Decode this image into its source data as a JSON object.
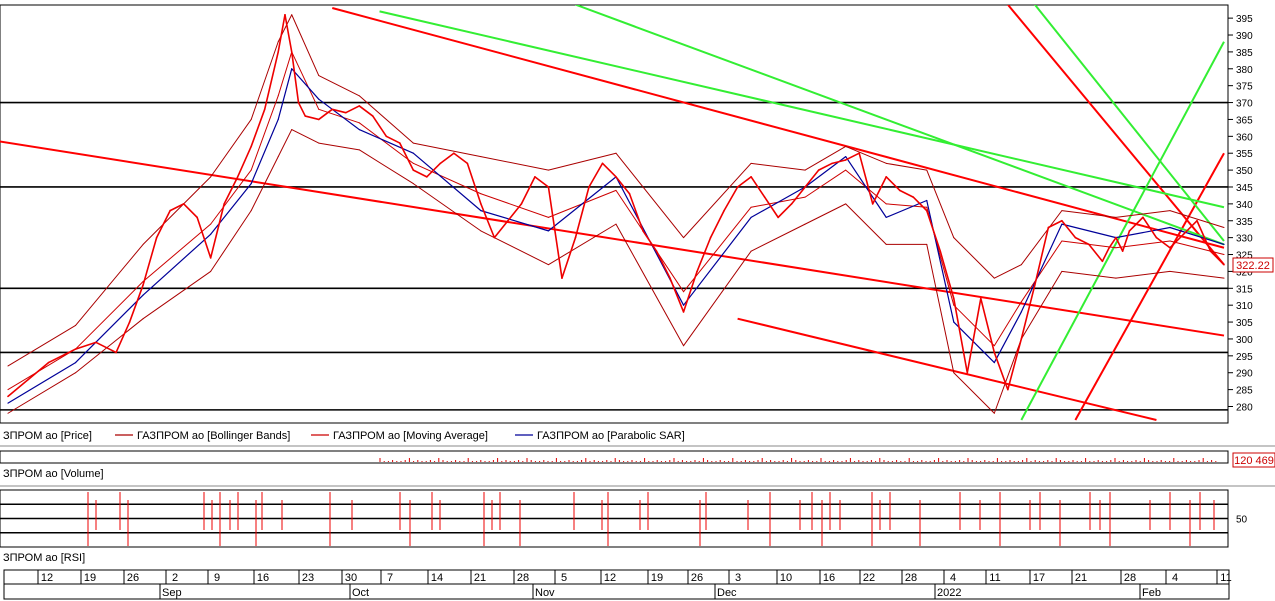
{
  "chart_data": [
    {
      "type": "line",
      "panel": "price",
      "legend": [
        {
          "label": "ЗПРОМ ао [Price]",
          "color": "#ee0000"
        },
        {
          "label": "ГАЗПРОМ ао [Bollinger Bands]",
          "color": "#aa0000"
        },
        {
          "label": "ГАЗПРОМ ао [Moving Average]",
          "color": "#cc0000"
        },
        {
          "label": "ГАЗПРОМ ао [Parabolic SAR]",
          "color": "#000099"
        }
      ],
      "ylim": [
        276,
        398
      ],
      "y_ticks": [
        280,
        285,
        290,
        295,
        300,
        305,
        310,
        315,
        320,
        325,
        330,
        335,
        340,
        345,
        350,
        355,
        360,
        365,
        370,
        375,
        380,
        385,
        390,
        395
      ],
      "last_value_label": "322.22",
      "horizontal_levels": [
        370,
        345,
        315,
        296,
        279
      ],
      "price": {
        "x": [
          0,
          3,
          6,
          10,
          13,
          16,
          18,
          20,
          22,
          24,
          26,
          28,
          30,
          32,
          34,
          36,
          38,
          40,
          41,
          42,
          43,
          44,
          46,
          48,
          50,
          52,
          54,
          56,
          58,
          60,
          62,
          64,
          66,
          68,
          70,
          72,
          74,
          76,
          78,
          80,
          82,
          84,
          86,
          88,
          90,
          92,
          94,
          96,
          98,
          100,
          102,
          104,
          106,
          108,
          110,
          112,
          114,
          116,
          118,
          120,
          122,
          124,
          126,
          128,
          130,
          132,
          134,
          136,
          138,
          140,
          142,
          144,
          146,
          148,
          150,
          152,
          154,
          156,
          158,
          160,
          162,
          163,
          164,
          165,
          166,
          168,
          170,
          172,
          174,
          176,
          178,
          180
        ],
        "values": [
          283,
          288,
          293,
          297,
          299,
          296,
          305,
          316,
          330,
          338,
          340,
          336,
          324,
          340,
          348,
          357,
          368,
          385,
          396,
          385,
          370,
          366,
          365,
          368,
          367,
          369,
          366,
          360,
          358,
          350,
          348,
          352,
          355,
          352,
          340,
          330,
          335,
          340,
          348,
          345,
          318,
          330,
          345,
          352,
          348,
          343,
          332,
          326,
          318,
          308,
          320,
          330,
          338,
          345,
          348,
          342,
          336,
          340,
          345,
          350,
          352,
          353,
          355,
          340,
          348,
          344,
          342,
          338,
          326,
          312,
          290,
          312,
          296,
          285,
          300,
          316,
          333,
          335,
          330,
          328,
          323,
          327,
          330,
          326,
          332,
          336,
          330,
          327,
          331,
          335,
          326,
          322
        ]
      },
      "bollinger_upper": {
        "x": [
          0,
          10,
          20,
          30,
          36,
          40,
          42,
          46,
          52,
          60,
          70,
          80,
          90,
          100,
          110,
          118,
          124,
          130,
          136,
          140,
          146,
          150,
          156,
          164,
          172,
          180
        ],
        "values": [
          292,
          304,
          328,
          348,
          365,
          388,
          396,
          378,
          372,
          358,
          354,
          350,
          355,
          330,
          352,
          350,
          357,
          352,
          350,
          330,
          318,
          322,
          338,
          336,
          338,
          333
        ]
      },
      "bollinger_lower": {
        "x": [
          0,
          10,
          20,
          30,
          36,
          40,
          42,
          46,
          52,
          60,
          70,
          80,
          90,
          100,
          110,
          118,
          124,
          130,
          136,
          140,
          146,
          150,
          156,
          164,
          172,
          180
        ],
        "values": [
          278,
          290,
          306,
          320,
          338,
          354,
          362,
          358,
          356,
          346,
          332,
          322,
          334,
          298,
          326,
          334,
          340,
          328,
          328,
          290,
          278,
          300,
          320,
          318,
          320,
          318
        ]
      },
      "moving_average": {
        "x": [
          0,
          10,
          20,
          30,
          36,
          40,
          42,
          46,
          52,
          60,
          70,
          80,
          90,
          100,
          110,
          118,
          124,
          130,
          136,
          140,
          146,
          150,
          156,
          164,
          172,
          180
        ],
        "values": [
          285,
          297,
          317,
          334,
          350,
          372,
          385,
          368,
          364,
          352,
          343,
          336,
          344,
          314,
          339,
          342,
          350,
          340,
          339,
          310,
          298,
          311,
          329,
          327,
          329,
          325
        ]
      },
      "parabolic_sar": {
        "x": [
          0,
          10,
          20,
          30,
          36,
          40,
          42,
          46,
          52,
          60,
          70,
          80,
          90,
          100,
          110,
          118,
          124,
          130,
          136,
          140,
          146,
          150,
          156,
          164,
          172,
          180
        ],
        "values": [
          281,
          293,
          313,
          331,
          346,
          365,
          380,
          371,
          362,
          355,
          338,
          332,
          348,
          310,
          336,
          345,
          354,
          336,
          341,
          305,
          293,
          308,
          334,
          330,
          333,
          328
        ]
      },
      "trendlines": [
        {
          "color": "#ff0000",
          "from": [
            -6,
            360
          ],
          "to": [
            180,
            301
          ]
        },
        {
          "color": "#ff0000",
          "from": [
            48,
            398
          ],
          "to": [
            180,
            327
          ]
        },
        {
          "color": "#ff0000",
          "from": [
            108,
            306
          ],
          "to": [
            170,
            276
          ]
        },
        {
          "color": "#ff0000",
          "from": [
            148,
            399
          ],
          "to": [
            180,
            322
          ]
        },
        {
          "color": "#ff0000",
          "from": [
            158,
            276
          ],
          "to": [
            180,
            355
          ]
        },
        {
          "color": "#33ee33",
          "from": [
            55,
            397
          ],
          "to": [
            180,
            339
          ]
        },
        {
          "color": "#33ee33",
          "from": [
            84,
            399
          ],
          "to": [
            180,
            328
          ]
        },
        {
          "color": "#33ee33",
          "from": [
            152,
            399
          ],
          "to": [
            180,
            329
          ]
        },
        {
          "color": "#33ee33",
          "from": [
            150,
            276
          ],
          "to": [
            180,
            388
          ]
        }
      ]
    },
    {
      "type": "bar",
      "panel": "volume",
      "legend": [
        {
          "label": "ЗПРОМ ао [Volume]",
          "color": "#ee0000"
        }
      ],
      "last_value_label": "120 469"
    },
    {
      "type": "line",
      "panel": "rsi",
      "legend": [
        {
          "label": "ЗПРОМ ао [RSI]",
          "color": "#ee0000"
        }
      ],
      "ylim": [
        30,
        70
      ],
      "y_ticks": [
        50
      ],
      "horizontal_levels": [
        60,
        50,
        40
      ]
    }
  ],
  "time_axis": {
    "days": [
      "12",
      "19",
      "26",
      "2",
      "9",
      "16",
      "23",
      "30",
      "7",
      "14",
      "21",
      "28",
      "5",
      "12",
      "19",
      "26",
      "3",
      "10",
      "16",
      "22",
      "28",
      "4",
      "11",
      "17",
      "21",
      "28",
      "4",
      "11"
    ],
    "months": [
      "Sep",
      "Oct",
      "Nov",
      "Dec",
      "2022",
      "Feb"
    ]
  }
}
